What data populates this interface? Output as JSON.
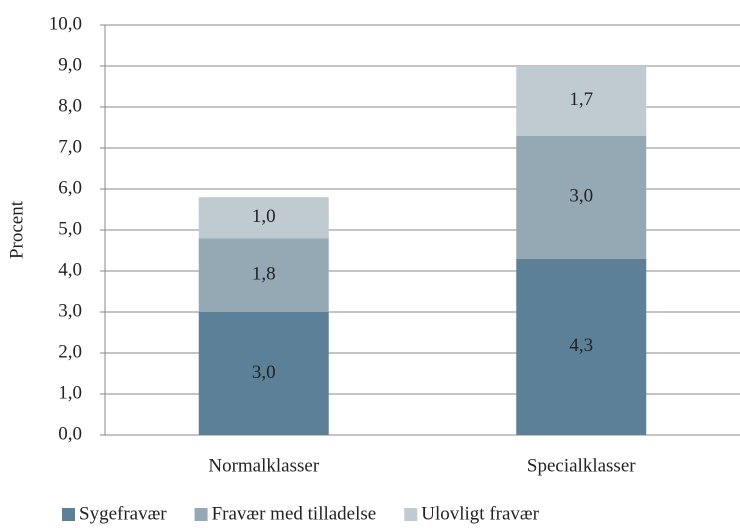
{
  "chart_data": {
    "type": "bar",
    "stacked": true,
    "y_label": "Procent",
    "categories": [
      "Normalklasser",
      "Specialklasser"
    ],
    "series": [
      {
        "name": "Sygefravær",
        "color": "#5b8097",
        "values": [
          3.0,
          4.3
        ],
        "value_labels": [
          "3,0",
          "4,3"
        ]
      },
      {
        "name": "Fravær med tilladelse",
        "color": "#95a9b4",
        "values": [
          1.8,
          3.0
        ],
        "value_labels": [
          "1,8",
          "3,0"
        ]
      },
      {
        "name": "Ulovligt fravær",
        "color": "#c0cbd1",
        "values": [
          1.0,
          1.7
        ],
        "value_labels": [
          "1,0",
          "1,7"
        ]
      }
    ],
    "ylim": [
      0,
      10
    ],
    "yticks": [
      {
        "value": 0,
        "label": "0,0"
      },
      {
        "value": 1,
        "label": "1,0"
      },
      {
        "value": 2,
        "label": "2,0"
      },
      {
        "value": 3,
        "label": "3,0"
      },
      {
        "value": 4,
        "label": "4,0"
      },
      {
        "value": 5,
        "label": "5,0"
      },
      {
        "value": 6,
        "label": "6,0"
      },
      {
        "value": 7,
        "label": "7,0"
      },
      {
        "value": 8,
        "label": "8,0"
      },
      {
        "value": 9,
        "label": "9,0"
      },
      {
        "value": 10,
        "label": "10,0"
      }
    ],
    "grid": true,
    "legend": "bottom"
  }
}
